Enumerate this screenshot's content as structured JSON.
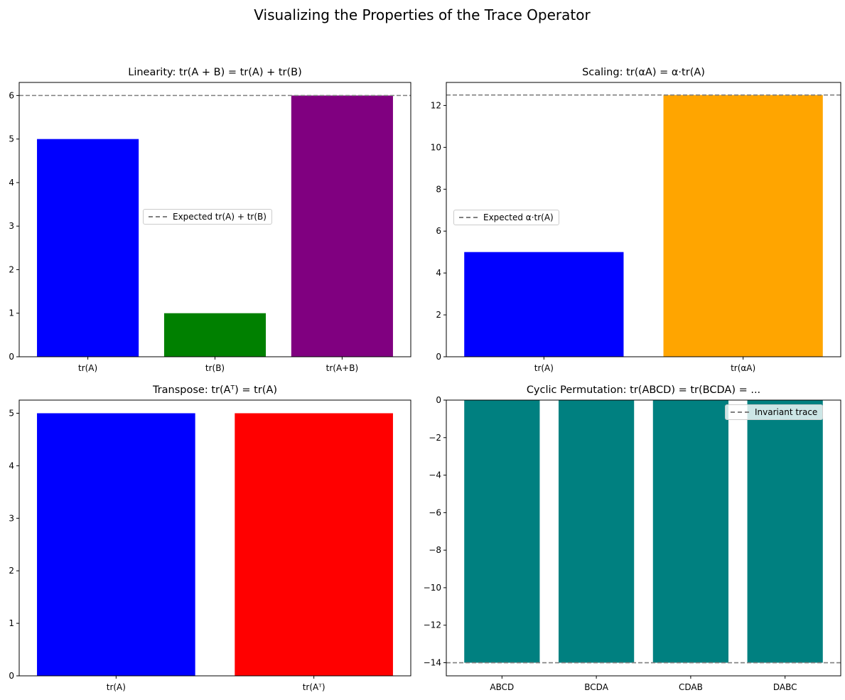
{
  "figure_title": "Visualizing the Properties of the Trace Operator",
  "chart_data": [
    {
      "type": "bar",
      "title": "Linearity: tr(A + B) = tr(A) + tr(B)",
      "categories": [
        "tr(A)",
        "tr(B)",
        "tr(A+B)"
      ],
      "values": [
        5,
        1,
        6
      ],
      "colors": [
        "#0000ff",
        "#008000",
        "#800080"
      ],
      "ylim": [
        0,
        6.3
      ],
      "yticks": [
        0,
        1,
        2,
        3,
        4,
        5,
        6
      ],
      "reference_line": {
        "y": 6,
        "style": "dashed",
        "color": "#808080",
        "label": "Expected tr(A) + tr(B)"
      },
      "legend": "center-right",
      "grid": false
    },
    {
      "type": "bar",
      "title": "Scaling: tr(αA) = α·tr(A)",
      "categories": [
        "tr(A)",
        "tr(αA)"
      ],
      "values": [
        5,
        12.5
      ],
      "colors": [
        "#0000ff",
        "#ffa500"
      ],
      "ylim": [
        0,
        13.1
      ],
      "yticks": [
        0,
        2,
        4,
        6,
        8,
        10,
        12
      ],
      "reference_line": {
        "y": 12.5,
        "style": "dashed",
        "color": "#808080",
        "label": "Expected α·tr(A)"
      },
      "legend": "center-left",
      "grid": false
    },
    {
      "type": "bar",
      "title": "Transpose: tr(Aᵀ) = tr(A)",
      "categories": [
        "tr(A)",
        "tr(Aᵀ)"
      ],
      "values": [
        5,
        5
      ],
      "colors": [
        "#0000ff",
        "#ff0000"
      ],
      "ylim": [
        0,
        5.25
      ],
      "yticks": [
        0,
        1,
        2,
        3,
        4,
        5
      ],
      "grid": false
    },
    {
      "type": "bar",
      "title": "Cyclic Permutation: tr(ABCD) = tr(BCDA) = ...",
      "categories": [
        "ABCD",
        "BCDA",
        "CDAB",
        "DABC"
      ],
      "values": [
        -14,
        -14,
        -14,
        -14
      ],
      "colors": [
        "#008080",
        "#008080",
        "#008080",
        "#008080"
      ],
      "ylim": [
        -14.7,
        0
      ],
      "yticks": [
        0,
        -2,
        -4,
        -6,
        -8,
        -10,
        -12,
        -14
      ],
      "reference_line": {
        "y": -14,
        "style": "dashed",
        "color": "#808080",
        "label": "Invariant trace"
      },
      "legend": "upper-right",
      "grid": false
    }
  ]
}
